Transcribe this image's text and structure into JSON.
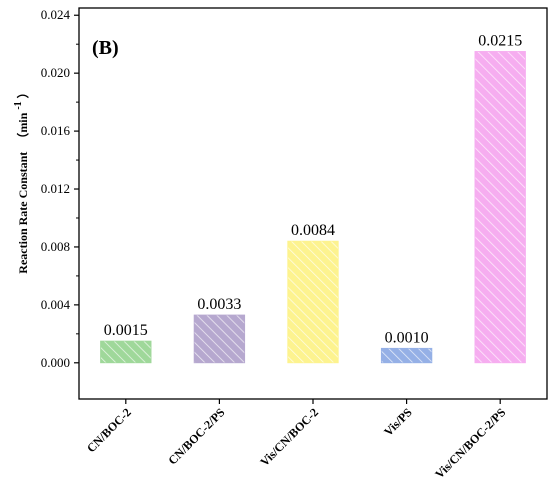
{
  "panel_label": "(B)",
  "chart_data": {
    "type": "bar",
    "title": "",
    "xlabel": "",
    "ylabel": "Reaction Rate Constant",
    "ylabel_unit": "（min",
    "ylabel_unit_sup": "-1",
    "ylabel_unit_close": "）",
    "ylim": [
      -0.0025,
      0.0245
    ],
    "yticks": [
      0.0,
      0.004,
      0.008,
      0.012,
      0.016,
      0.02,
      0.024
    ],
    "ytick_labels": [
      "0.000",
      "0.004",
      "0.008",
      "0.012",
      "0.016",
      "0.020",
      "0.024"
    ],
    "categories": [
      "CN/BOC-2",
      "CN/BOC-2/PS",
      "Vis/CN/BOC-2",
      "Vis/PS",
      "Vis/CN/BOC-2/PS"
    ],
    "values": [
      0.0015,
      0.0033,
      0.0084,
      0.001,
      0.0215
    ],
    "value_labels": [
      "0.0015",
      "0.0033",
      "0.0084",
      "0.0010",
      "0.0215"
    ],
    "colors": [
      "#9fd89a",
      "#b6a8cf",
      "#fdf38f",
      "#95b0e6",
      "#f6adf0"
    ],
    "hatch": "diagonal",
    "grid": false,
    "legend": "none"
  }
}
